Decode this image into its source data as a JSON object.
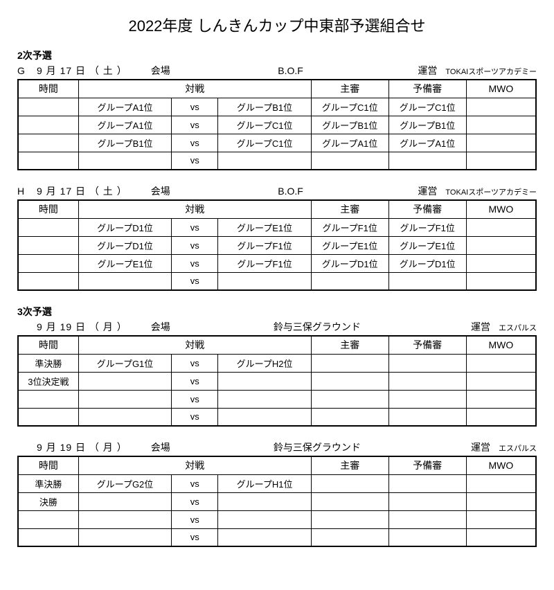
{
  "title": "2022年度 しんきんカップ中東部予選組合せ",
  "section2_label": "2次予選",
  "section3_label": "3次予選",
  "labels": {
    "kaijo": "会場",
    "unei": "運営",
    "time": "時間",
    "taisen": "対戦",
    "shushin": "主審",
    "yobishin": "予備審",
    "mwo": "MWO",
    "vs": "vs"
  },
  "blockG": {
    "group": "G",
    "date": "9 月 17 日 （ 土 ）",
    "venue": "B.O.F",
    "operator": "TOKAIスポーツアカデミー",
    "rows": [
      {
        "time": "",
        "t1": "グループA1位",
        "t2": "グループB1位",
        "ref": "グループC1位",
        "sub": "グループC1位",
        "mwo": ""
      },
      {
        "time": "",
        "t1": "グループA1位",
        "t2": "グループC1位",
        "ref": "グループB1位",
        "sub": "グループB1位",
        "mwo": ""
      },
      {
        "time": "",
        "t1": "グループB1位",
        "t2": "グループC1位",
        "ref": "グループA1位",
        "sub": "グループA1位",
        "mwo": ""
      },
      {
        "time": "",
        "t1": "",
        "t2": "",
        "ref": "",
        "sub": "",
        "mwo": ""
      }
    ]
  },
  "blockH": {
    "group": "H",
    "date": "9 月 17 日 （ 土 ）",
    "venue": "B.O.F",
    "operator": "TOKAIスポーツアカデミー",
    "rows": [
      {
        "time": "",
        "t1": "グループD1位",
        "t2": "グループE1位",
        "ref": "グループF1位",
        "sub": "グループF1位",
        "mwo": ""
      },
      {
        "time": "",
        "t1": "グループD1位",
        "t2": "グループF1位",
        "ref": "グループE1位",
        "sub": "グループE1位",
        "mwo": ""
      },
      {
        "time": "",
        "t1": "グループE1位",
        "t2": "グループF1位",
        "ref": "グループD1位",
        "sub": "グループD1位",
        "mwo": ""
      },
      {
        "time": "",
        "t1": "",
        "t2": "",
        "ref": "",
        "sub": "",
        "mwo": ""
      }
    ]
  },
  "block3a": {
    "group": "",
    "date": "9 月 19 日 （ 月 ）",
    "venue": "鈴与三保グラウンド",
    "operator": "エスパルス",
    "rows": [
      {
        "time": "準決勝",
        "t1": "グループG1位",
        "t2": "グループH2位",
        "ref": "",
        "sub": "",
        "mwo": ""
      },
      {
        "time": "3位決定戦",
        "t1": "",
        "t2": "",
        "ref": "",
        "sub": "",
        "mwo": ""
      },
      {
        "time": "",
        "t1": "",
        "t2": "",
        "ref": "",
        "sub": "",
        "mwo": ""
      },
      {
        "time": "",
        "t1": "",
        "t2": "",
        "ref": "",
        "sub": "",
        "mwo": ""
      }
    ]
  },
  "block3b": {
    "group": "",
    "date": "9 月 19 日 （ 月 ）",
    "venue": "鈴与三保グラウンド",
    "operator": "エスパルス",
    "rows": [
      {
        "time": "準決勝",
        "t1": "グループG2位",
        "t2": "グループH1位",
        "ref": "",
        "sub": "",
        "mwo": ""
      },
      {
        "time": "決勝",
        "t1": "",
        "t2": "",
        "ref": "",
        "sub": "",
        "mwo": ""
      },
      {
        "time": "",
        "t1": "",
        "t2": "",
        "ref": "",
        "sub": "",
        "mwo": ""
      },
      {
        "time": "",
        "t1": "",
        "t2": "",
        "ref": "",
        "sub": "",
        "mwo": ""
      }
    ]
  }
}
